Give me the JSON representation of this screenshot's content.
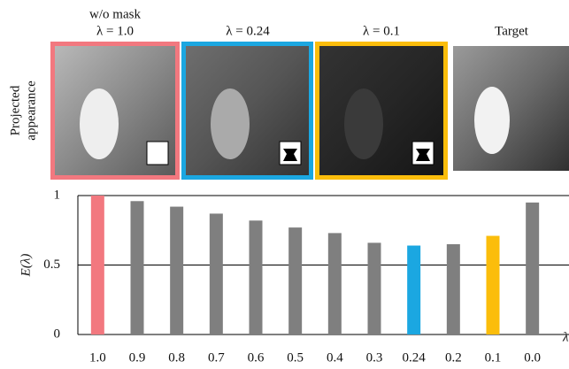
{
  "figure": {
    "row_label": [
      "Projected",
      "appearance"
    ],
    "panels": [
      {
        "labels": [
          "w/o mask",
          "λ = 1.0"
        ],
        "frame_color": "#f2787f"
      },
      {
        "labels": [
          "λ = 0.24"
        ],
        "frame_color": "#1ba7e1"
      },
      {
        "labels": [
          "λ = 0.1"
        ],
        "frame_color": "#fbbd0b"
      },
      {
        "labels": [
          "Target"
        ]
      }
    ]
  },
  "chart_data": {
    "type": "bar",
    "categories": [
      "1.0",
      "0.9",
      "0.8",
      "0.7",
      "0.6",
      "0.5",
      "0.4",
      "0.3",
      "0.24",
      "0.2",
      "0.1",
      "0.0"
    ],
    "values": [
      1.0,
      0.96,
      0.92,
      0.87,
      0.82,
      0.77,
      0.73,
      0.66,
      0.64,
      0.65,
      0.71,
      0.95
    ],
    "colors": [
      "#f2787f",
      "#7f7f7f",
      "#7f7f7f",
      "#7f7f7f",
      "#7f7f7f",
      "#7f7f7f",
      "#7f7f7f",
      "#7f7f7f",
      "#1ba7e1",
      "#7f7f7f",
      "#fbbd0b",
      "#7f7f7f"
    ],
    "ylim": [
      0,
      1
    ],
    "yticks": [
      0,
      0.5,
      1
    ],
    "ylabel": "E(λ)",
    "xlabel": "λ",
    "grid": true
  }
}
